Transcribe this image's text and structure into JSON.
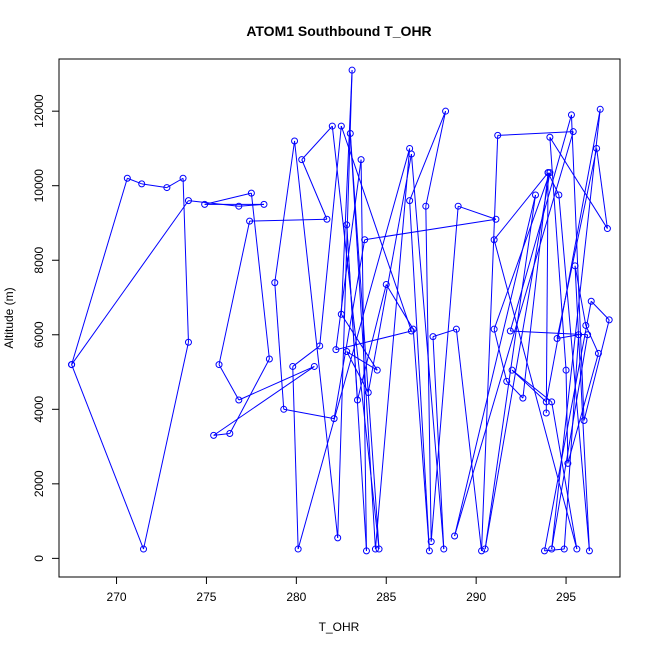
{
  "chart_data": {
    "type": "line",
    "title": "ATOM1 Southbound T_OHR",
    "xlabel": "T_OHR",
    "ylabel": "Altitude (m)",
    "xlim": [
      266.8,
      298.0
    ],
    "ylim": [
      -500,
      13400
    ],
    "xticks": [
      270,
      275,
      280,
      285,
      290,
      295
    ],
    "yticks": [
      0,
      2000,
      4000,
      6000,
      8000,
      10000,
      12000
    ],
    "grid": false,
    "legend": "none",
    "series": [
      {
        "color": "#0000ff",
        "marker": "open-circle",
        "x": [
          267.5,
          271.5,
          274.0,
          273.7,
          272.8,
          271.4,
          270.6,
          267.5,
          274.0,
          276.8,
          278.2,
          274.9,
          277.5,
          278.5,
          276.3,
          275.4,
          281.0,
          276.8,
          275.7,
          277.4,
          281.7,
          280.3,
          282.0,
          284.6,
          283.0,
          284.4,
          286.3,
          280.1,
          279.8,
          281.3,
          282.5,
          286.4,
          282.2,
          283.6,
          283.9,
          282.8,
          283.4,
          285.0,
          286.5,
          287.4,
          286.3,
          288.3,
          287.2,
          287.5,
          289.0,
          291.1,
          283.8,
          282.1,
          279.3,
          278.8,
          279.9,
          282.3,
          283.1,
          282.5,
          284.5,
          282.8,
          284.0,
          286.4,
          288.2,
          287.6,
          288.9,
          290.3,
          291.2,
          295.4,
          288.8,
          293.3,
          290.5,
          294.1,
          291.0,
          291.7,
          292.6,
          294.0,
          294.6,
          296.3,
          295.5,
          296.1,
          296.8,
          295.1,
          295.0,
          294.1,
          297.3,
          296.7,
          294.5,
          295.7,
          294.9,
          293.8,
          296.4,
          297.4,
          296.0,
          295.3,
          291.9,
          296.2,
          294.2,
          296.9,
          293.9,
          292.0,
          294.2,
          295.6,
          291.0,
          294.0,
          293.9
        ],
        "y": [
          5200,
          250,
          5800,
          10200,
          9950,
          10050,
          10200,
          5200,
          9600,
          9450,
          9500,
          9500,
          9800,
          5350,
          3350,
          3300,
          5150,
          4250,
          5200,
          9050,
          9100,
          10700,
          11600,
          250,
          11400,
          250,
          11000,
          250,
          5150,
          5700,
          11600,
          6100,
          5600,
          10700,
          200,
          8950,
          4250,
          7350,
          6150,
          200,
          9600,
          12000,
          9450,
          450,
          9450,
          9100,
          8550,
          3750,
          4000,
          7400,
          11200,
          550,
          13100,
          6550,
          5050,
          5550,
          4450,
          10850,
          250,
          5950,
          6150,
          200,
          11350,
          11450,
          600,
          9750,
          250,
          10350,
          6150,
          4750,
          4300,
          10350,
          9750,
          200,
          7850,
          6250,
          5500,
          2550,
          5050,
          11300,
          8850,
          11000,
          5900,
          6000,
          250,
          200,
          6900,
          6400,
          3700,
          11900,
          6100,
          6000,
          250,
          12050,
          4200,
          5050,
          4200,
          250,
          8550,
          10350,
          3900
        ]
      }
    ]
  }
}
